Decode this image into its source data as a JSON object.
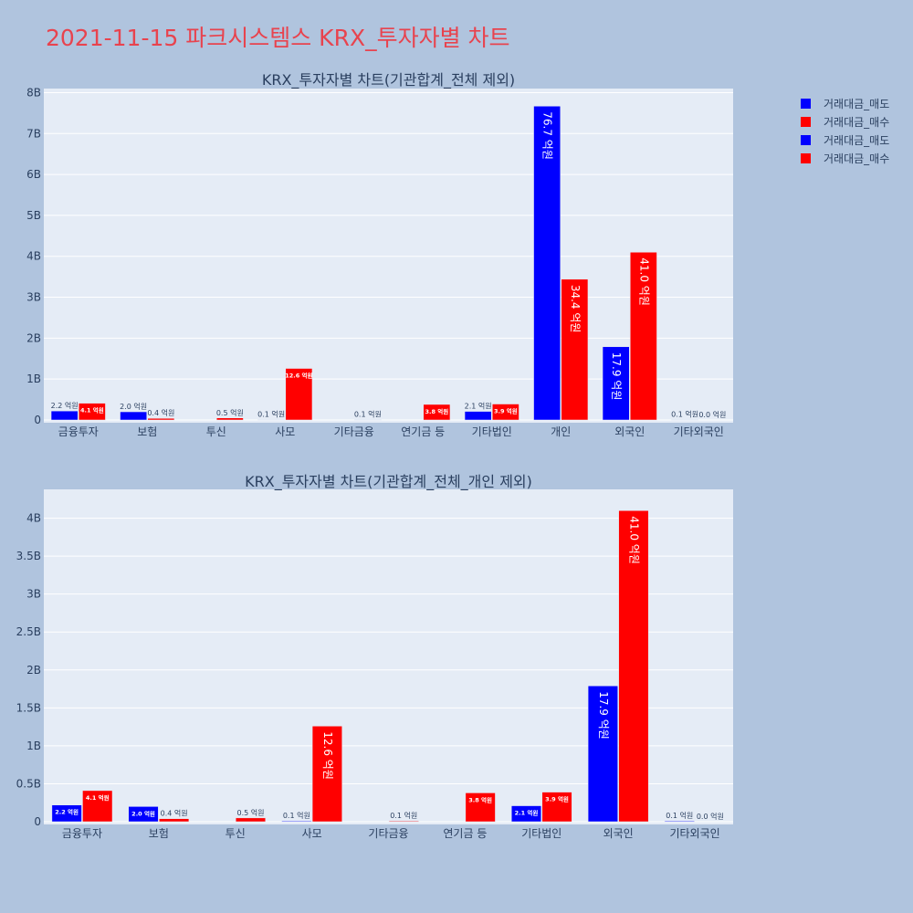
{
  "page": {
    "title": "2021-11-15 파크시스템스 KRX_투자자별 차트"
  },
  "colors": {
    "background": "#b0c4de",
    "plot_bg": "#e5ecf6",
    "sell": "#0000ff",
    "buy": "#ff0000",
    "title": "#e8434e"
  },
  "chart_data": [
    {
      "type": "bar",
      "title": "KRX_투자자별 차트(기관합계_전체 제외)",
      "categories": [
        "금융투자",
        "보험",
        "투신",
        "사모",
        "기타금융",
        "연기금 등",
        "기타법인",
        "개인",
        "외국인",
        "기타외국인"
      ],
      "series": [
        {
          "name": "거래대금_매도",
          "color": "#0000ff",
          "values": [
            0.22,
            0.2,
            0,
            0.01,
            0,
            0,
            0.21,
            7.67,
            1.79,
            0.01
          ],
          "labels": [
            "2.2 억원",
            "2.0 억원",
            "",
            "0.1 억원",
            "",
            "",
            "2.1 억원",
            "76.7 억원",
            "17.9 억원",
            "0.1 억원"
          ]
        },
        {
          "name": "거래대금_매수",
          "color": "#ff0000",
          "values": [
            0.41,
            0.04,
            0.05,
            1.26,
            0.01,
            0.38,
            0.39,
            3.44,
            4.1,
            0.0
          ],
          "labels": [
            "4.1 억원",
            "0.4 억원",
            "0.5 억원",
            "12.6 억원",
            "0.1 억원",
            "3.8 억원",
            "3.9 억원",
            "34.4 억원",
            "41.0 억원",
            "0.0 억원"
          ]
        }
      ],
      "ylim": [
        0,
        8.1
      ],
      "yticks": [
        0,
        1,
        2,
        3,
        4,
        5,
        6,
        7,
        8
      ],
      "ytick_labels": [
        "0",
        "1B",
        "2B",
        "3B",
        "4B",
        "5B",
        "6B",
        "7B",
        "8B"
      ],
      "legend": "top-right",
      "grid": true
    },
    {
      "type": "bar",
      "title": "KRX_투자자별 차트(기관합계_전체_개인 제외)",
      "categories": [
        "금융투자",
        "보험",
        "투신",
        "사모",
        "기타금융",
        "연기금 등",
        "기타법인",
        "외국인",
        "기타외국인"
      ],
      "series": [
        {
          "name": "거래대금_매도",
          "color": "#0000ff",
          "values": [
            0.22,
            0.2,
            0,
            0.01,
            0,
            0,
            0.21,
            1.79,
            0.01
          ],
          "labels": [
            "2.2 억원",
            "2.0 억원",
            "",
            "0.1 억원",
            "",
            "",
            "2.1 억원",
            "17.9 억원",
            "0.1 억원"
          ]
        },
        {
          "name": "거래대금_매수",
          "color": "#ff0000",
          "values": [
            0.41,
            0.04,
            0.05,
            1.26,
            0.01,
            0.38,
            0.39,
            4.1,
            0.0
          ],
          "labels": [
            "4.1 억원",
            "0.4 억원",
            "0.5 억원",
            "12.6 억원",
            "0.1 억원",
            "3.8 억원",
            "3.9 억원",
            "41.0 억원",
            "0.0 억원"
          ]
        }
      ],
      "ylim": [
        0,
        4.38
      ],
      "yticks": [
        0,
        0.5,
        1,
        1.5,
        2,
        2.5,
        3,
        3.5,
        4
      ],
      "ytick_labels": [
        "0",
        "0.5B",
        "1B",
        "1.5B",
        "2B",
        "2.5B",
        "3B",
        "3.5B",
        "4B"
      ],
      "grid": true
    }
  ],
  "legend": {
    "items": [
      {
        "label": "거래대금_매도",
        "color": "#0000ff"
      },
      {
        "label": "거래대금_매수",
        "color": "#ff0000"
      },
      {
        "label": "거래대금_매도",
        "color": "#0000ff"
      },
      {
        "label": "거래대금_매수",
        "color": "#ff0000"
      }
    ]
  }
}
